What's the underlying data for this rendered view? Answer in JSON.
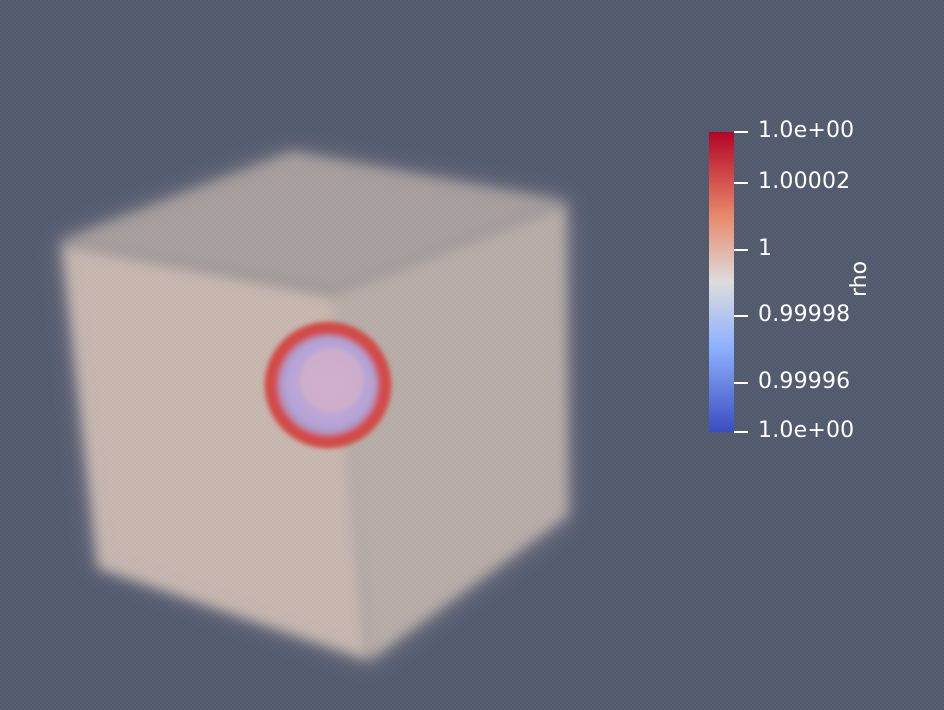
{
  "scene": {
    "background_color": "#525a6f",
    "description_field": "rho"
  },
  "legend": {
    "title": "rho",
    "colors": {
      "high": "#b40426",
      "mid_high": "#e8896c",
      "mid": "#dddcdc",
      "mid_low": "#8db0fe",
      "low": "#3b4cc0"
    },
    "ticks": [
      {
        "label": "1.0e+00"
      },
      {
        "label": "1.00002"
      },
      {
        "label": "1"
      },
      {
        "label": "0.99998"
      },
      {
        "label": "0.99996"
      },
      {
        "label": "1.0e+00"
      }
    ]
  }
}
